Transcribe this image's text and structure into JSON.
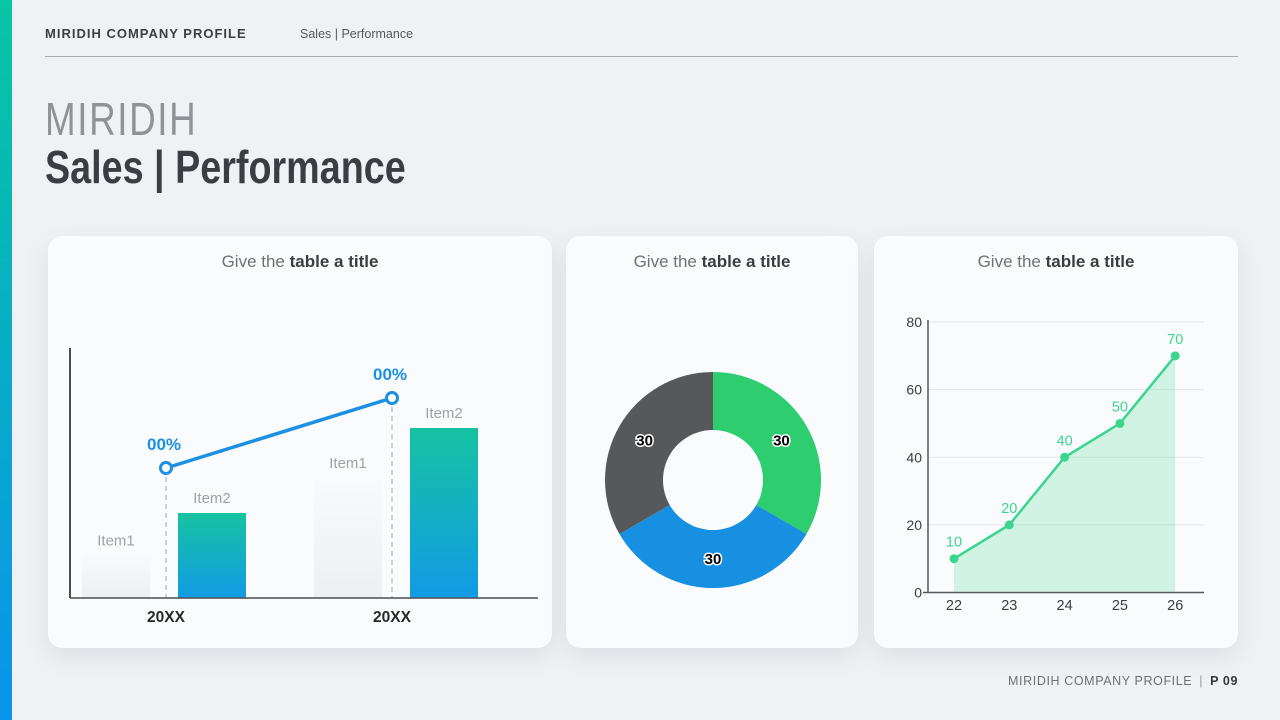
{
  "page": {
    "bg": "#F0F1F4",
    "accent_gradient_top": "#07C6A2",
    "accent_gradient_bottom": "#0A93EC"
  },
  "header": {
    "brand": "MIRIDIH COMPANY PROFILE",
    "section": "Sales | Performance"
  },
  "title": {
    "line1": "MIRIDIH",
    "line2": "Sales | Performance"
  },
  "cards": [
    {
      "title_prefix": "Give the ",
      "title_bold": "table a title"
    },
    {
      "title_prefix": "Give the ",
      "title_bold": "table a title"
    },
    {
      "title_prefix": "Give the ",
      "title_bold": "table a title"
    }
  ],
  "chart_data": [
    {
      "type": "bar",
      "subtype": "grouped-bars-with-line-overlay",
      "title": "Give the table a title",
      "categories": [
        "20XX",
        "20XX"
      ],
      "bar_series": [
        {
          "name": "Item1",
          "values": [
            17,
            48
          ],
          "style": "ghost"
        },
        {
          "name": "Item2",
          "values": [
            34,
            68
          ],
          "style": "gradient"
        }
      ],
      "line_series": {
        "values": [
          52,
          80
        ],
        "point_labels": [
          "00%",
          "00%"
        ]
      },
      "ylim": [
        0,
        100
      ],
      "grid": false,
      "colors": {
        "line": "#1B90E4",
        "bar_top": "#16C3A1",
        "bar_bottom": "#129BE6",
        "ghost_top": "#F9FAFB",
        "ghost_bottom": "#EDEFF2",
        "label": "#9EA2A8",
        "category": "#26282B",
        "axis": "#4A4D51",
        "dash": "#C0C3C7"
      }
    },
    {
      "type": "pie",
      "subtype": "donut",
      "title": "Give the table a title",
      "values": [
        30,
        30,
        30
      ],
      "labels": [
        "30",
        "30",
        "30"
      ],
      "colors": [
        "#2ECD70",
        "#1790E2",
        "#56585A"
      ],
      "start_angle_deg": 0,
      "clockwise": true,
      "label_text_color": "#000000",
      "label_outline_color": "#FFFFFF"
    },
    {
      "type": "area",
      "title": "Give the table a title",
      "x": [
        22,
        23,
        24,
        25,
        26
      ],
      "values": [
        10,
        20,
        40,
        50,
        70
      ],
      "point_labels": [
        "10",
        "20",
        "40",
        "50",
        "70"
      ],
      "yticks": [
        0,
        20,
        40,
        60,
        80
      ],
      "ylim": [
        0,
        80
      ],
      "grid": true,
      "colors": {
        "line": "#3CD590",
        "fill": "rgba(61,213,144,0.22)",
        "grid": "#E5E6E8",
        "axis": "#55585C",
        "tick": "#3A3D42"
      }
    }
  ],
  "footer": {
    "brand": "MIRIDIH COMPANY PROFILE",
    "separator": "|",
    "page": "P 09"
  }
}
